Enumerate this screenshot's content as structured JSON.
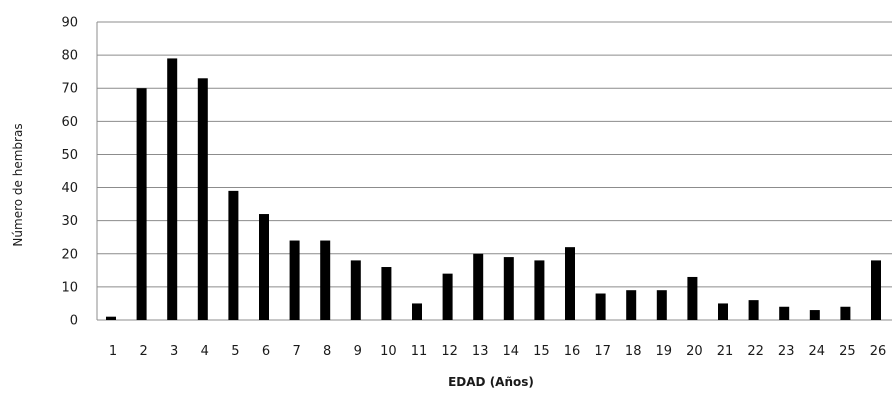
{
  "chart_data": {
    "type": "bar",
    "title": "",
    "xlabel": "EDAD (Años)",
    "ylabel": "Número de hembras",
    "ylim": [
      0,
      90
    ],
    "yticks": [
      0,
      10,
      20,
      30,
      40,
      50,
      60,
      70,
      80,
      90
    ],
    "grid": true,
    "legend": "none",
    "categories": [
      "1",
      "2",
      "3",
      "4",
      "5",
      "6",
      "7",
      "8",
      "9",
      "10",
      "11",
      "12",
      "13",
      "14",
      "15",
      "16",
      "17",
      "18",
      "19",
      "20",
      "21",
      "22",
      "23",
      "24",
      "25",
      "26"
    ],
    "series": [
      {
        "values": [
          1,
          70,
          79,
          73,
          39,
          32,
          24,
          24,
          18,
          16,
          5,
          14,
          20,
          19,
          18,
          22,
          8,
          9,
          9,
          13,
          5,
          6,
          4,
          3,
          4,
          18
        ]
      }
    ],
    "colors": {
      "bar": "#000000",
      "grid": "#8c8c8c",
      "axis": "#8c8c8c"
    }
  }
}
